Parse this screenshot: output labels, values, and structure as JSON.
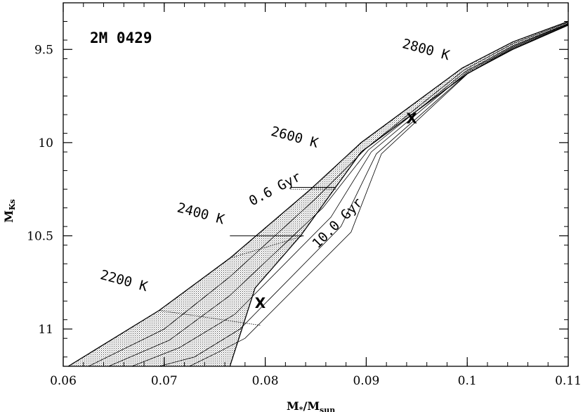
{
  "chart_data": {
    "type": "line",
    "title": "2M 0429",
    "xlabel": "M*/Msun",
    "xlabel_main": "M",
    "xlabel_sub1": "*",
    "xlabel_slash": "/M",
    "xlabel_sub2": "sun",
    "ylabel": "MKs",
    "ylabel_main": "M",
    "ylabel_sub": "Ks",
    "xlim": [
      0.06,
      0.11
    ],
    "ylim": [
      11.2,
      9.25
    ],
    "y_inverted": true,
    "grid": false,
    "x_major_ticks": [
      0.06,
      0.07,
      0.08,
      0.09,
      0.1,
      0.11
    ],
    "x_tick_labels": [
      "0.06",
      "0.07",
      "0.08",
      "0.09",
      "0.1",
      "0.11"
    ],
    "x_minor_step": 0.002,
    "y_major_ticks": [
      9.5,
      10,
      10.5,
      11
    ],
    "y_tick_labels": [
      "9.5",
      "10",
      "10.5",
      "11"
    ],
    "y_minor_step": 0.1,
    "shaded_region": [
      [
        0.0605,
        11.2
      ],
      [
        0.0695,
        10.9
      ],
      [
        0.0765,
        10.62
      ],
      [
        0.0845,
        10.25
      ],
      [
        0.0895,
        10.0
      ],
      [
        0.0995,
        9.6
      ],
      [
        0.1045,
        9.46
      ],
      [
        0.11,
        9.35
      ],
      [
        0.11,
        9.37
      ],
      [
        0.1045,
        9.5
      ],
      [
        0.1,
        9.63
      ],
      [
        0.0895,
        10.05
      ],
      [
        0.0835,
        10.5
      ],
      [
        0.079,
        10.78
      ],
      [
        0.0765,
        11.2
      ]
    ],
    "isochrones": [
      {
        "name": "0.6 Gyr",
        "points": [
          [
            0.0605,
            11.2
          ],
          [
            0.0695,
            10.9
          ],
          [
            0.0765,
            10.62
          ],
          [
            0.0845,
            10.25
          ],
          [
            0.0895,
            10.0
          ],
          [
            0.0995,
            9.6
          ],
          [
            0.1045,
            9.46
          ],
          [
            0.11,
            9.35
          ]
        ]
      },
      {
        "points": [
          [
            0.0625,
            11.2
          ],
          [
            0.07,
            11.0
          ],
          [
            0.0765,
            10.72
          ],
          [
            0.085,
            10.3
          ],
          [
            0.09,
            10.03
          ],
          [
            0.0997,
            9.61
          ],
          [
            0.1045,
            9.47
          ],
          [
            0.11,
            9.355
          ]
        ]
      },
      {
        "points": [
          [
            0.0645,
            11.2
          ],
          [
            0.0705,
            11.06
          ],
          [
            0.0765,
            10.82
          ],
          [
            0.0857,
            10.35
          ],
          [
            0.0902,
            10.04
          ],
          [
            0.0998,
            9.62
          ],
          [
            0.1045,
            9.48
          ],
          [
            0.11,
            9.36
          ]
        ]
      },
      {
        "points": [
          [
            0.0668,
            11.2
          ],
          [
            0.0715,
            11.1
          ],
          [
            0.077,
            10.92
          ],
          [
            0.0865,
            10.4
          ],
          [
            0.0905,
            10.05
          ],
          [
            0.0999,
            9.625
          ],
          [
            0.1045,
            9.485
          ],
          [
            0.11,
            9.362
          ]
        ]
      },
      {
        "points": [
          [
            0.0695,
            11.2
          ],
          [
            0.073,
            11.15
          ],
          [
            0.0775,
            11.0
          ],
          [
            0.0875,
            10.45
          ],
          [
            0.091,
            10.06
          ],
          [
            0.1,
            9.63
          ],
          [
            0.1045,
            9.49
          ],
          [
            0.11,
            9.365
          ]
        ]
      },
      {
        "points": [
          [
            0.0725,
            11.2
          ],
          [
            0.0755,
            11.12
          ],
          [
            0.078,
            11.05
          ],
          [
            0.0885,
            10.48
          ],
          [
            0.0915,
            10.06
          ],
          [
            0.1,
            9.632
          ],
          [
            0.1045,
            9.495
          ],
          [
            0.11,
            9.368
          ]
        ]
      },
      {
        "name": "10.0 Gyr",
        "points": [
          [
            0.0765,
            11.2
          ],
          [
            0.079,
            10.78
          ],
          [
            0.0835,
            10.5
          ],
          [
            0.0895,
            10.05
          ],
          [
            0.1,
            9.63
          ],
          [
            0.1045,
            9.5
          ],
          [
            0.11,
            9.37
          ]
        ]
      }
    ],
    "teff_lines": [
      {
        "label": "2200 K",
        "points": [
          [
            0.0695,
            10.9
          ],
          [
            0.0795,
            10.98
          ]
        ]
      },
      {
        "label": "2400 K",
        "points": [
          [
            0.0765,
            10.62
          ],
          [
            0.0838,
            10.5
          ]
        ]
      },
      {
        "label": "2600 K",
        "points": [
          [
            0.0825,
            10.25
          ],
          [
            0.087,
            10.25
          ]
        ]
      },
      {
        "label": "2800 K",
        "points": [
          [
            0.1,
            9.61
          ],
          [
            0.1045,
            9.5
          ]
        ]
      }
    ],
    "mass_cuts": [
      {
        "points": [
          [
            0.0765,
            10.5
          ],
          [
            0.0838,
            10.5
          ]
        ]
      },
      {
        "points": [
          [
            0.0825,
            10.24
          ],
          [
            0.087,
            10.24
          ]
        ]
      }
    ],
    "markers": [
      {
        "label": "X",
        "x": 0.0945,
        "y": 9.87
      },
      {
        "label": "X",
        "x": 0.0795,
        "y": 10.86
      }
    ],
    "annotations": [
      {
        "text": "2800 K",
        "x": 0.0935,
        "y": 9.49,
        "angle": 15
      },
      {
        "text": "2600 K",
        "x": 0.0805,
        "y": 9.96,
        "angle": 15
      },
      {
        "text": "2400 K",
        "x": 0.0712,
        "y": 10.37,
        "angle": 15
      },
      {
        "text": "2200 K",
        "x": 0.0636,
        "y": 10.73,
        "angle": 15
      },
      {
        "text": "0.6 Gyr",
        "x": 0.0787,
        "y": 10.34,
        "angle": -28
      },
      {
        "text": "10.0 Gyr",
        "x": 0.0852,
        "y": 10.57,
        "angle": -45
      }
    ]
  }
}
